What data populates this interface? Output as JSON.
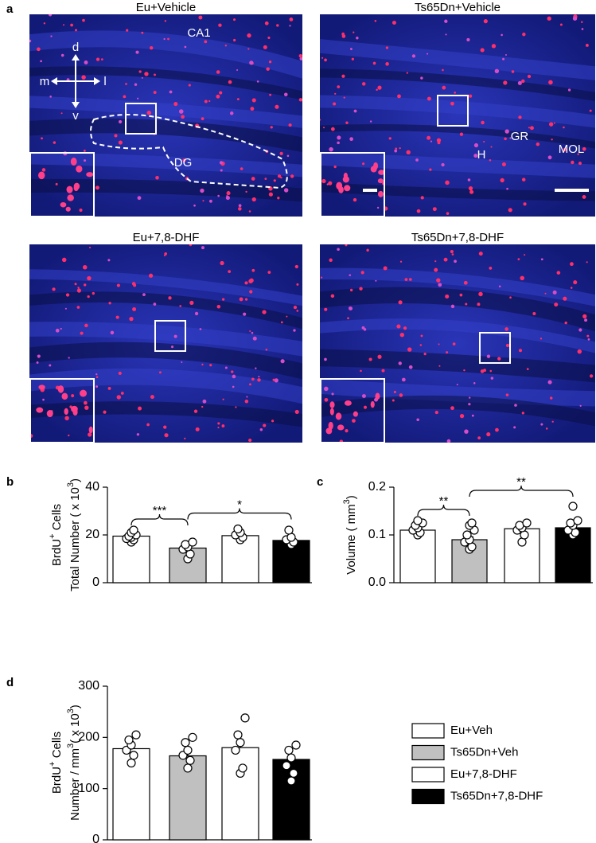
{
  "micrographs": {
    "panel_label": "a",
    "images": [
      {
        "title": "Eu+Vehicle",
        "annotations": [
          "CA1",
          "DG",
          "d",
          "m",
          "l",
          "v"
        ]
      },
      {
        "title": "Ts65Dn+Vehicle",
        "annotations": [
          "H",
          "GR",
          "MOL"
        ]
      },
      {
        "title": "Eu+7,8-DHF",
        "annotations": []
      },
      {
        "title": "Ts65Dn+7,8-DHF",
        "annotations": []
      }
    ]
  },
  "legend": [
    {
      "name": "Eu+Veh",
      "color": "#ffffff"
    },
    {
      "name": "Ts65Dn+Veh",
      "color": "#c0c0c0"
    },
    {
      "name": "Eu+7,8-DHF",
      "color": "#ffffff"
    },
    {
      "name": "Ts65Dn+7,8-DHF",
      "color": "#000000"
    }
  ],
  "chart_data": [
    {
      "type": "bar",
      "panel_label": "b",
      "ylabel": [
        [
          {
            "text": "BrdU"
          },
          {
            "text": "+",
            "sup": true
          },
          {
            "text": " Cells"
          }
        ],
        [
          {
            "text": "Total Number ( x 10"
          },
          {
            "text": "3",
            "sup": true
          },
          {
            "text": ")"
          }
        ]
      ],
      "ylim": [
        0,
        40
      ],
      "yticks": [
        0,
        20,
        40
      ],
      "values": [
        19.5,
        14.5,
        19.7,
        17.7
      ],
      "errors": [
        0.7,
        1.2,
        0.8,
        0.8
      ],
      "points": [
        [
          17,
          18,
          18.5,
          19,
          19.5,
          20,
          21,
          22
        ],
        [
          10,
          12,
          14,
          15,
          16,
          17
        ],
        [
          18,
          19,
          20,
          21,
          22.5
        ],
        [
          16,
          17,
          18,
          19,
          22
        ]
      ],
      "annotations": [
        {
          "text": "***",
          "from": 0,
          "to": 1
        },
        {
          "text": "*",
          "from": 1,
          "to": 3
        }
      ]
    },
    {
      "type": "bar",
      "panel_label": "c",
      "ylabel": [
        [
          {
            "text": "Volume (  mm"
          },
          {
            "text": "3",
            "sup": true
          },
          {
            "text": ")"
          }
        ]
      ],
      "ylim": [
        0,
        0.2
      ],
      "yticks": [
        {
          "value": 0,
          "label": "0.0"
        },
        0.1,
        0.2
      ],
      "values": [
        0.11,
        0.09,
        0.113,
        0.115
      ],
      "errors": [
        0.004,
        0.006,
        0.006,
        0.006
      ],
      "points": [
        [
          0.1,
          0.105,
          0.11,
          0.115,
          0.12,
          0.125,
          0.13
        ],
        [
          0.07,
          0.075,
          0.085,
          0.09,
          0.1,
          0.11,
          0.12,
          0.125
        ],
        [
          0.085,
          0.1,
          0.11,
          0.115,
          0.12,
          0.125
        ],
        [
          0.1,
          0.105,
          0.11,
          0.12,
          0.125,
          0.13,
          0.16
        ]
      ],
      "annotations": [
        {
          "text": "**",
          "from": 0,
          "to": 1
        },
        {
          "text": "**",
          "from": 1,
          "to": 3
        }
      ]
    },
    {
      "type": "bar",
      "panel_label": "d",
      "ylabel": [
        [
          {
            "text": "BrdU"
          },
          {
            "text": "+",
            "sup": true
          },
          {
            "text": " Cells"
          }
        ],
        [
          {
            "text": "Number / mm"
          },
          {
            "text": "3",
            "sup": true
          },
          {
            "text": "( x 10"
          },
          {
            "text": "3",
            "sup": true
          },
          {
            "text": ")"
          }
        ]
      ],
      "ylim": [
        0,
        300
      ],
      "yticks": [
        0,
        100,
        200,
        300
      ],
      "values": [
        178,
        164,
        180,
        157
      ],
      "errors": [
        7,
        8,
        12,
        8
      ],
      "points": [
        [
          150,
          165,
          175,
          185,
          195,
          205
        ],
        [
          140,
          155,
          165,
          175,
          190,
          200
        ],
        [
          130,
          140,
          175,
          190,
          205,
          238
        ],
        [
          115,
          130,
          145,
          160,
          175,
          185
        ]
      ],
      "annotations": []
    }
  ]
}
